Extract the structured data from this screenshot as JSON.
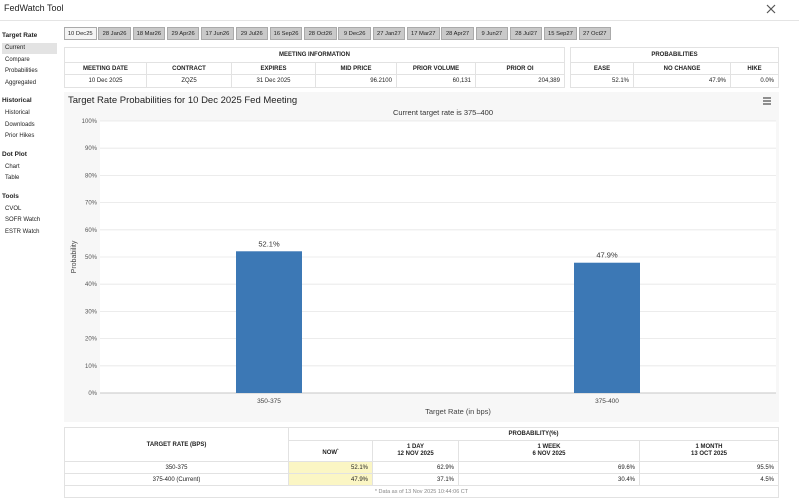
{
  "header": {
    "title": "FedWatch Tool"
  },
  "tabs": [
    "10 Dec25",
    "28 Jan26",
    "18 Mar26",
    "29 Apr26",
    "17 Jun26",
    "29 Jul26",
    "16 Sep26",
    "28 Oct26",
    "9 Dec26",
    "27 Jan27",
    "17 Mar27",
    "28 Apr27",
    "9 Jun27",
    "28 Jul27",
    "15 Sep27",
    "27 Oct27"
  ],
  "sidebar": {
    "sections": [
      {
        "title": "Target Rate",
        "items": [
          "Current",
          "Compare",
          "Probabilities",
          "Aggregated"
        ]
      },
      {
        "title": "Historical",
        "items": [
          "Historical",
          "Downloads",
          "Prior Hikes"
        ]
      },
      {
        "title": "Dot Plot",
        "items": [
          "Chart",
          "Table"
        ]
      },
      {
        "title": "Tools",
        "items": [
          "CVOL",
          "SOFR Watch",
          "ESTR Watch"
        ]
      }
    ]
  },
  "meeting_info": {
    "title": "MEETING INFORMATION",
    "columns": [
      "MEETING DATE",
      "CONTRACT",
      "EXPIRES",
      "MID PRICE",
      "PRIOR VOLUME",
      "PRIOR OI"
    ],
    "row": [
      "10 Dec 2025",
      "ZQZ5",
      "31 Dec 2025",
      "96.2100",
      "60,131",
      "204,389"
    ]
  },
  "probabilities": {
    "title": "PROBABILITIES",
    "columns": [
      "EASE",
      "NO CHANGE",
      "HIKE"
    ],
    "row": [
      "52.1%",
      "47.9%",
      "0.0%"
    ]
  },
  "chart_data": {
    "type": "bar",
    "title": "Target Rate Probabilities for 10 Dec 2025 Fed Meeting",
    "subtitle": "Current target rate is 375–400",
    "x_label": "Target Rate (in bps)",
    "y_label": "Probability",
    "categories": [
      "350-375",
      "375-400"
    ],
    "values": [
      52.1,
      47.9
    ],
    "value_labels": [
      "52.1%",
      "47.9%"
    ],
    "color": "#3c78b5",
    "ylim": [
      0,
      100
    ],
    "yticks": [
      {
        "value": 0,
        "label": "0%"
      },
      {
        "value": 10,
        "label": "10%"
      },
      {
        "value": 20,
        "label": "20%"
      },
      {
        "value": 30,
        "label": "30%"
      },
      {
        "value": 40,
        "label": "40%"
      },
      {
        "value": 50,
        "label": "50%"
      },
      {
        "value": 60,
        "label": "60%"
      },
      {
        "value": 70,
        "label": "70%"
      },
      {
        "value": 80,
        "label": "80%"
      },
      {
        "value": 90,
        "label": "90%"
      },
      {
        "value": 100,
        "label": "100%"
      }
    ],
    "grid": true
  },
  "probability_table": {
    "rate_header": "TARGET RATE (BPS)",
    "group_header": "PROBABILITY(%)",
    "columns": [
      {
        "title": "NOW",
        "note": "*"
      },
      {
        "title": "1 DAY",
        "date": "12 NOV 2025"
      },
      {
        "title": "1 WEEK",
        "date": "6 NOV 2025"
      },
      {
        "title": "1 MONTH",
        "date": "13 OCT 2025"
      }
    ],
    "rows": [
      {
        "rate": "350-375",
        "values": [
          "52.1%",
          "62.9%",
          "69.6%",
          "95.5%"
        ]
      },
      {
        "rate": "375-400 (Current)",
        "values": [
          "47.9%",
          "37.1%",
          "30.4%",
          "4.5%"
        ]
      }
    ],
    "footnote": "* Data as of 13 Nov 2025 10:44:06 CT"
  }
}
